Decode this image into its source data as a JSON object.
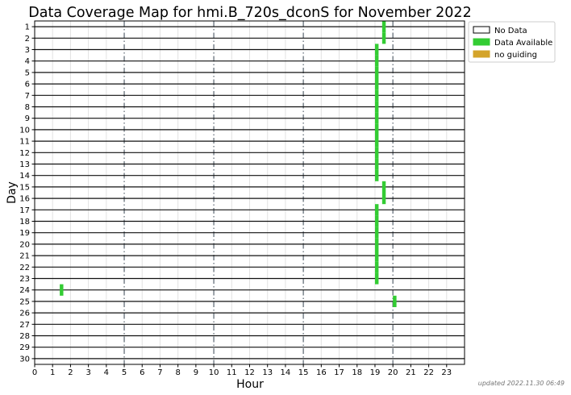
{
  "chart_data": {
    "type": "heatmap",
    "title": "Data Coverage Map for hmi.B_720s_dconS for November 2022",
    "xlabel": "Hour",
    "ylabel": "Day",
    "xlim": [
      0,
      24
    ],
    "ylim": [
      1,
      30
    ],
    "x_ticks": [
      "0",
      "1",
      "2",
      "3",
      "4",
      "5",
      "6",
      "7",
      "8",
      "9",
      "10",
      "11",
      "12",
      "13",
      "14",
      "15",
      "16",
      "17",
      "18",
      "19",
      "20",
      "21",
      "22",
      "23"
    ],
    "y_ticks": [
      "1",
      "2",
      "3",
      "4",
      "5",
      "6",
      "7",
      "8",
      "9",
      "10",
      "11",
      "12",
      "13",
      "14",
      "15",
      "16",
      "17",
      "18",
      "19",
      "20",
      "21",
      "22",
      "23",
      "24",
      "25",
      "26",
      "27",
      "28",
      "29",
      "30"
    ],
    "major_x_gridlines": [
      5,
      10,
      15,
      20
    ],
    "legend": {
      "placement": "outside-top-right",
      "entries": [
        {
          "label": "No Data",
          "color": "#ffffff"
        },
        {
          "label": "Data Available",
          "color": "#33cc33"
        },
        {
          "label": "no guiding",
          "color": "#d4a42a"
        }
      ]
    },
    "series": [
      {
        "name": "Data Available",
        "color": "#33cc33",
        "intervals": [
          {
            "day": 1,
            "start": 19.4,
            "end": 19.6
          },
          {
            "day": 2,
            "start": 19.4,
            "end": 19.6
          },
          {
            "day": 3,
            "start": 19.0,
            "end": 19.2
          },
          {
            "day": 4,
            "start": 19.0,
            "end": 19.2
          },
          {
            "day": 5,
            "start": 19.0,
            "end": 19.2
          },
          {
            "day": 6,
            "start": 19.0,
            "end": 19.2
          },
          {
            "day": 7,
            "start": 19.0,
            "end": 19.2
          },
          {
            "day": 8,
            "start": 19.0,
            "end": 19.2
          },
          {
            "day": 9,
            "start": 19.0,
            "end": 19.2
          },
          {
            "day": 10,
            "start": 19.0,
            "end": 19.2
          },
          {
            "day": 11,
            "start": 19.0,
            "end": 19.2
          },
          {
            "day": 12,
            "start": 19.0,
            "end": 19.2
          },
          {
            "day": 13,
            "start": 19.0,
            "end": 19.2
          },
          {
            "day": 14,
            "start": 19.0,
            "end": 19.2
          },
          {
            "day": 15,
            "start": 19.4,
            "end": 19.6
          },
          {
            "day": 16,
            "start": 19.4,
            "end": 19.6
          },
          {
            "day": 17,
            "start": 19.0,
            "end": 19.2
          },
          {
            "day": 18,
            "start": 19.0,
            "end": 19.2
          },
          {
            "day": 19,
            "start": 19.0,
            "end": 19.2
          },
          {
            "day": 20,
            "start": 19.0,
            "end": 19.2
          },
          {
            "day": 21,
            "start": 19.0,
            "end": 19.2
          },
          {
            "day": 22,
            "start": 19.0,
            "end": 19.2
          },
          {
            "day": 23,
            "start": 19.0,
            "end": 19.2
          },
          {
            "day": 24,
            "start": 1.4,
            "end": 1.6
          },
          {
            "day": 25,
            "start": 20.0,
            "end": 20.2
          }
        ]
      }
    ]
  },
  "footer": "updated 2022.11.30 06:49"
}
